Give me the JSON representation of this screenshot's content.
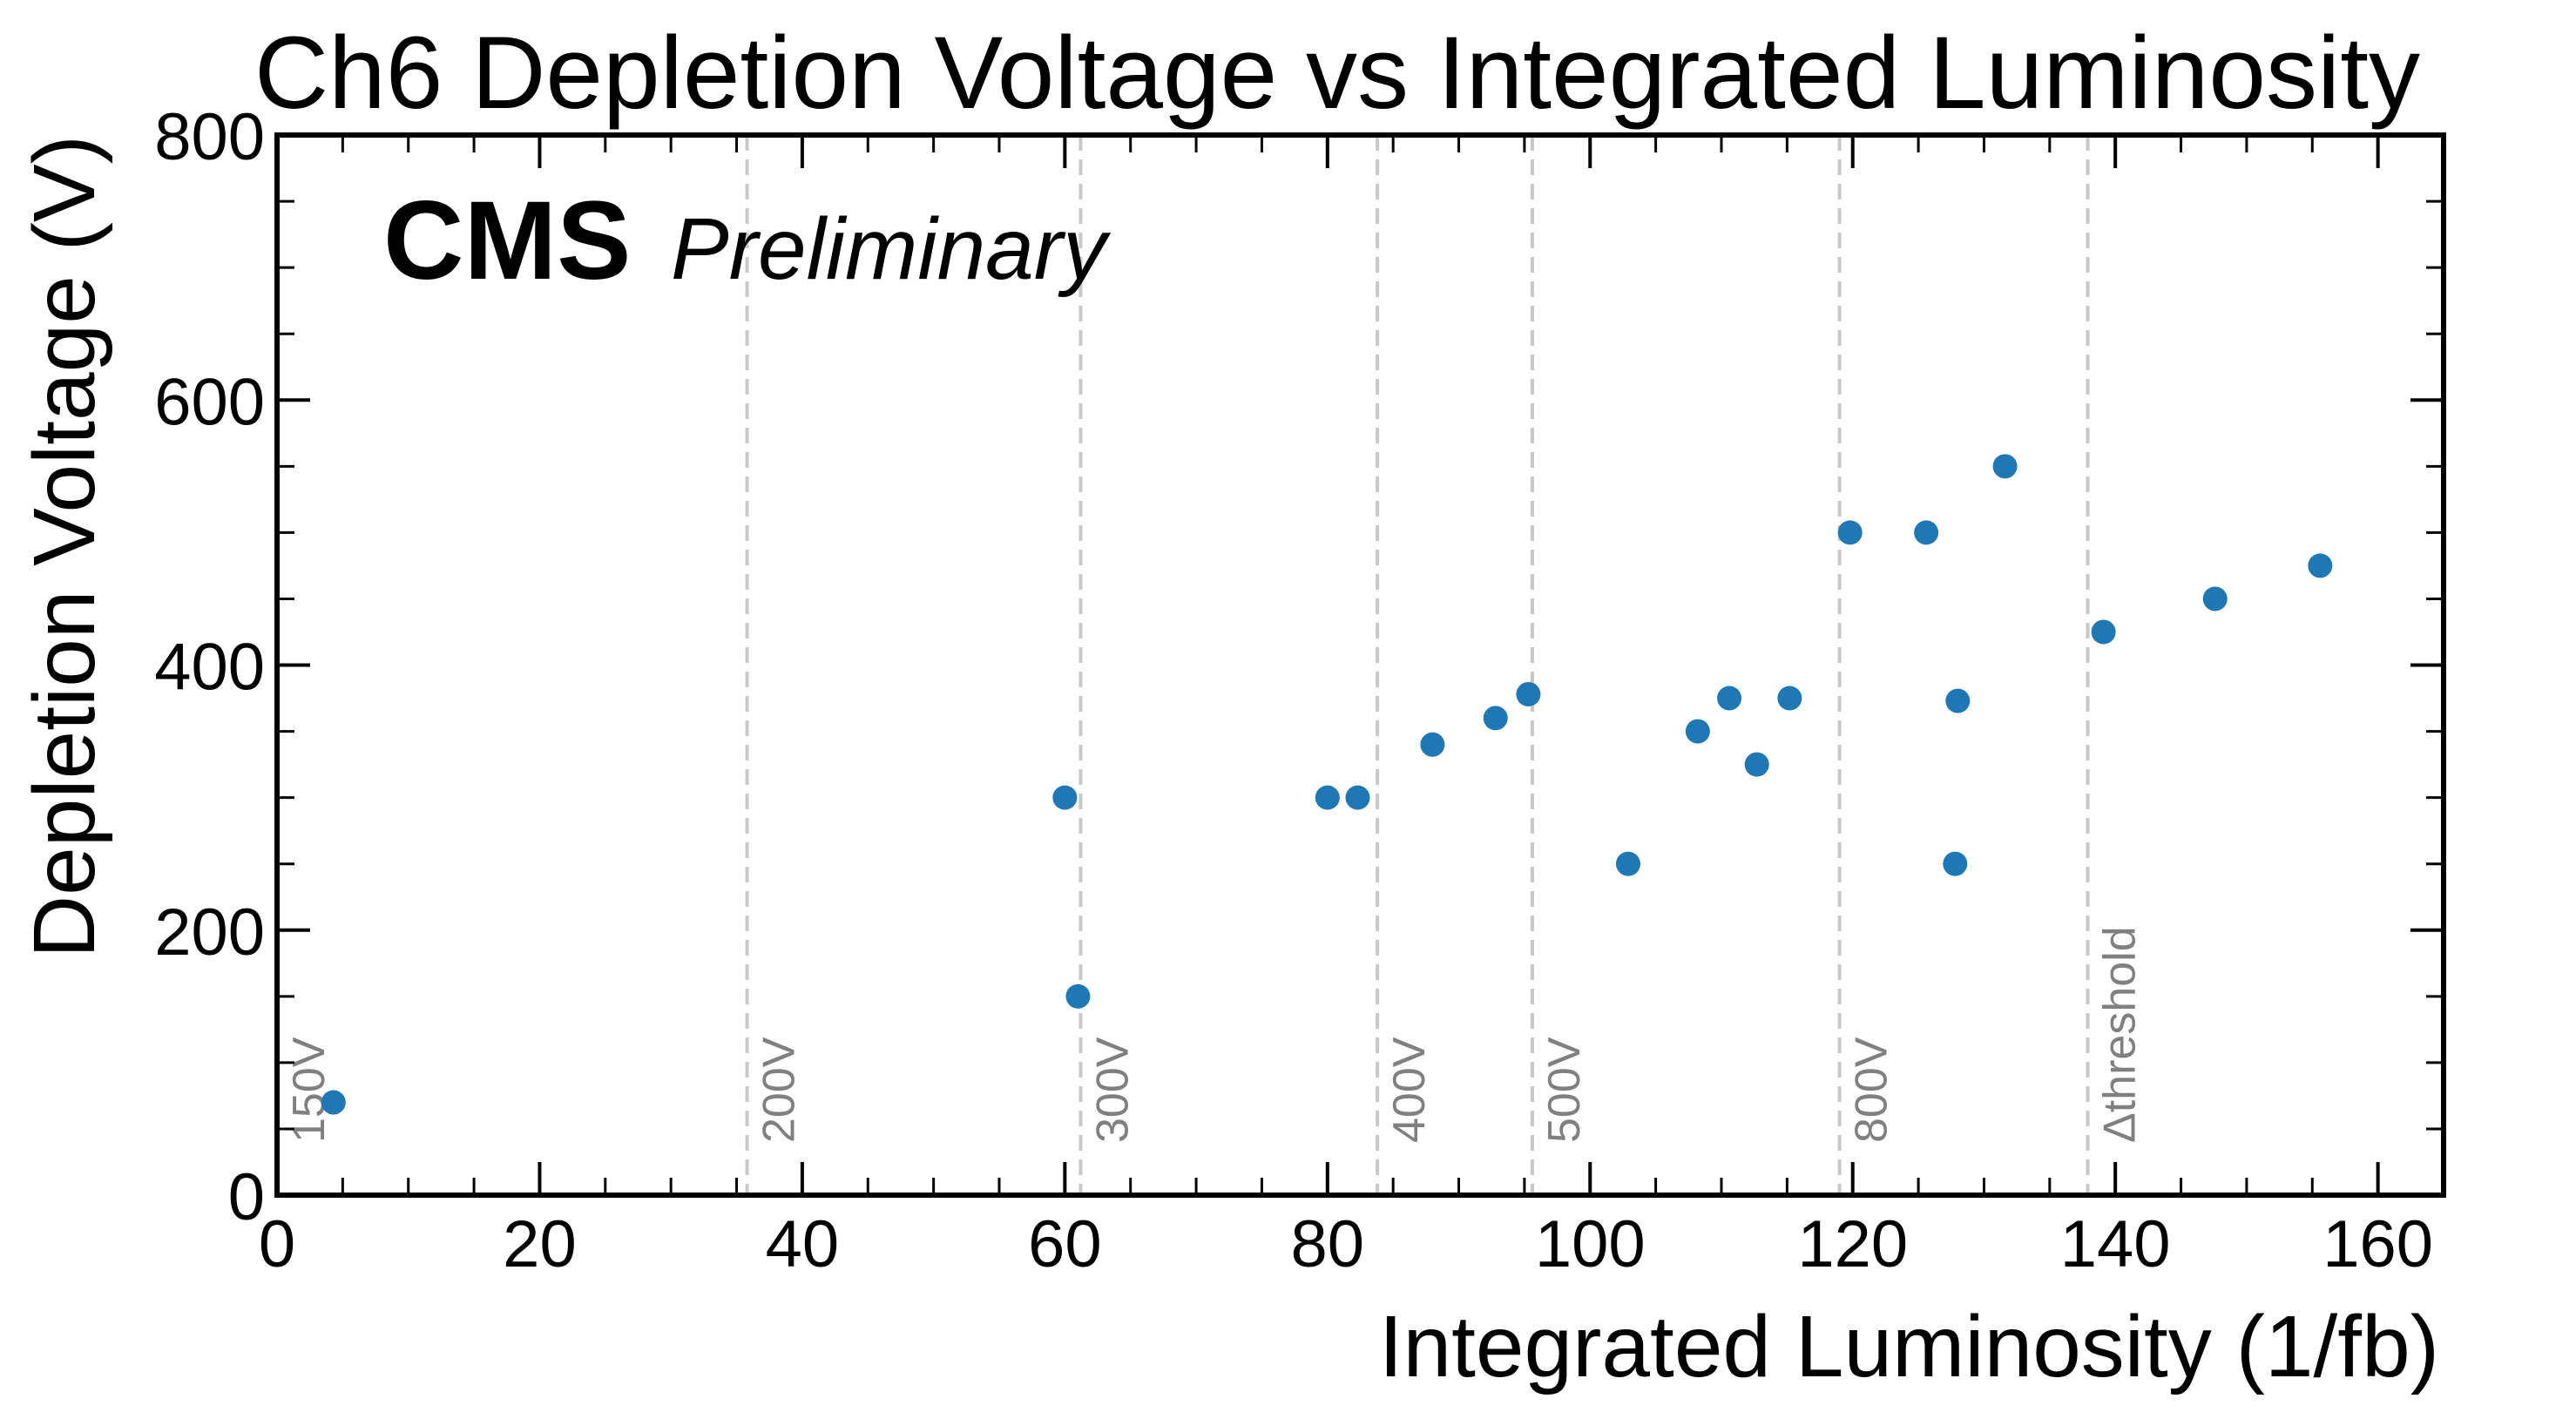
{
  "chart_data": {
    "type": "scatter",
    "title": "Ch6 Depletion Voltage vs Integrated Luminosity",
    "xlabel": "Integrated Luminosity (1/fb)",
    "ylabel": "Depletion Voltage (V)",
    "xlim": [
      0,
      165
    ],
    "ylim": [
      0,
      800
    ],
    "x_ticks": [
      "0",
      "20",
      "40",
      "60",
      "80",
      "100",
      "120",
      "140",
      "160"
    ],
    "y_ticks": [
      "0",
      "200",
      "400",
      "600",
      "800"
    ],
    "grid": false,
    "legend": "none",
    "marker_color": "#1f77b4",
    "vline_color": "#c8c8c8",
    "vline_label_color": "#808080",
    "cms_label": "CMS",
    "preliminary_label": "Preliminary",
    "vlines": [
      {
        "x": 0.0,
        "label": "150V"
      },
      {
        "x": 35.8,
        "label": "200V"
      },
      {
        "x": 61.2,
        "label": "300V"
      },
      {
        "x": 83.8,
        "label": "400V"
      },
      {
        "x": 95.6,
        "label": "500V"
      },
      {
        "x": 119.0,
        "label": "800V"
      },
      {
        "x": 137.9,
        "label": "Δthreshold"
      }
    ],
    "points": [
      {
        "x": 4.3,
        "y": 70
      },
      {
        "x": 60.0,
        "y": 300
      },
      {
        "x": 61.0,
        "y": 150
      },
      {
        "x": 80.0,
        "y": 300
      },
      {
        "x": 82.3,
        "y": 300
      },
      {
        "x": 88.0,
        "y": 340
      },
      {
        "x": 92.8,
        "y": 360
      },
      {
        "x": 95.3,
        "y": 378
      },
      {
        "x": 102.9,
        "y": 250
      },
      {
        "x": 108.2,
        "y": 350
      },
      {
        "x": 110.6,
        "y": 375
      },
      {
        "x": 112.7,
        "y": 325
      },
      {
        "x": 115.2,
        "y": 375
      },
      {
        "x": 119.8,
        "y": 500
      },
      {
        "x": 125.6,
        "y": 500
      },
      {
        "x": 127.8,
        "y": 250
      },
      {
        "x": 128.0,
        "y": 373
      },
      {
        "x": 131.6,
        "y": 550
      },
      {
        "x": 139.1,
        "y": 425
      },
      {
        "x": 147.6,
        "y": 450
      },
      {
        "x": 155.6,
        "y": 475
      }
    ]
  }
}
